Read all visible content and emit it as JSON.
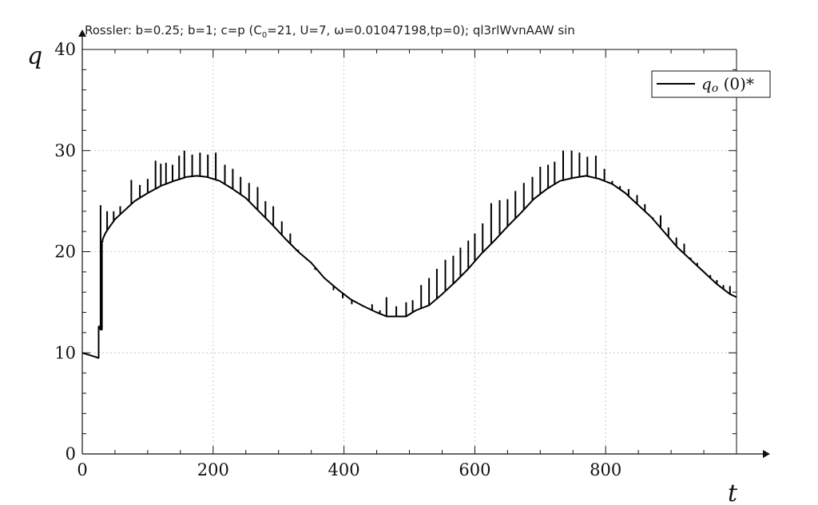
{
  "chart_data": {
    "type": "line",
    "title": {
      "prefix": "Rossler: b=0.25; b=1; c=p (C",
      "sub": "0",
      "suffix": "=21, U=7, ω=0.01047198,tp=0); ql3rlWvnAAW sin"
    },
    "xlabel": "t",
    "ylabel": "q",
    "xlim": [
      0,
      1000
    ],
    "ylim": [
      0,
      40
    ],
    "x_ticks": [
      0,
      200,
      400,
      600,
      800
    ],
    "y_ticks": [
      0,
      10,
      20,
      30,
      40
    ],
    "grid": true,
    "legend_position": "top-right",
    "series": [
      {
        "name_symbol": "q",
        "name_sub": "o",
        "name_rest": " (0)*",
        "color": "#000000",
        "x": [
          0,
          10,
          20,
          24,
          25,
          26,
          28,
          30,
          31,
          35,
          40,
          50,
          60,
          80,
          100,
          120,
          140,
          160,
          175,
          190,
          210,
          230,
          250,
          270,
          290,
          310,
          330,
          350,
          370,
          390,
          410,
          430,
          450,
          465,
          480,
          495,
          510,
          530,
          550,
          570,
          590,
          610,
          630,
          650,
          670,
          690,
          710,
          730,
          750,
          770,
          790,
          810,
          830,
          850,
          870,
          890,
          910,
          930,
          950,
          970,
          990,
          1000
        ],
        "y": [
          10,
          9.8,
          9.6,
          9.5,
          12.6,
          12.4,
          12.3,
          21,
          21.2,
          21.8,
          22.3,
          23.2,
          23.8,
          25,
          25.8,
          26.5,
          27,
          27.4,
          27.5,
          27.4,
          27,
          26.2,
          25.3,
          24,
          22.7,
          21.3,
          20,
          18.9,
          17.4,
          16.3,
          15.3,
          14.6,
          14,
          13.6,
          13.6,
          13.6,
          14.2,
          14.7,
          15.8,
          17,
          18.3,
          19.8,
          21.1,
          22.5,
          23.8,
          25.2,
          26.2,
          27,
          27.3,
          27.5,
          27.2,
          26.7,
          25.8,
          24.6,
          23.4,
          21.9,
          20.4,
          19.2,
          18,
          16.8,
          15.8,
          15.5
        ],
        "spike_x": [
          28,
          38,
          48,
          58,
          75,
          88,
          100,
          112,
          120,
          128,
          138,
          148,
          156,
          168,
          180,
          192,
          204,
          218,
          230,
          242,
          255,
          268,
          280,
          292,
          305,
          318,
          330,
          343,
          356,
          370,
          384,
          398,
          412,
          428,
          443,
          455,
          465,
          480,
          495,
          505,
          518,
          530,
          542,
          555,
          567,
          578,
          590,
          600,
          612,
          625,
          638,
          650,
          662,
          675,
          688,
          700,
          712,
          722,
          735,
          748,
          760,
          772,
          785,
          798,
          810,
          822,
          835,
          848,
          860,
          872,
          884,
          896,
          908,
          920,
          930,
          940,
          950,
          960,
          970,
          980,
          990
        ],
        "spike_y": [
          24.6,
          24,
          24,
          24.5,
          27.1,
          26.6,
          27.2,
          29,
          28.7,
          28.8,
          28.6,
          29.5,
          30,
          29.6,
          29.8,
          29.6,
          29.8,
          28.6,
          28.2,
          27.4,
          26.8,
          26.4,
          25,
          24.5,
          23,
          21.8,
          20.2,
          19.2,
          18.2,
          17.4,
          16.2,
          15.4,
          14.8,
          14.6,
          14.8,
          14.2,
          15.5,
          14.6,
          15,
          15.2,
          16.7,
          17.4,
          18.3,
          19.2,
          19.6,
          20.4,
          21.1,
          21.8,
          22.8,
          24.8,
          25.1,
          25.2,
          26,
          26.8,
          27.4,
          28.4,
          28.6,
          28.9,
          30,
          30,
          29.8,
          29.4,
          29.5,
          28.2,
          27,
          26.5,
          26.2,
          25.6,
          24.7,
          23.4,
          23.6,
          22.4,
          21.4,
          20.8,
          19.4,
          18.9,
          18.1,
          17.7,
          17.2,
          16.7,
          16.6
        ]
      }
    ]
  }
}
